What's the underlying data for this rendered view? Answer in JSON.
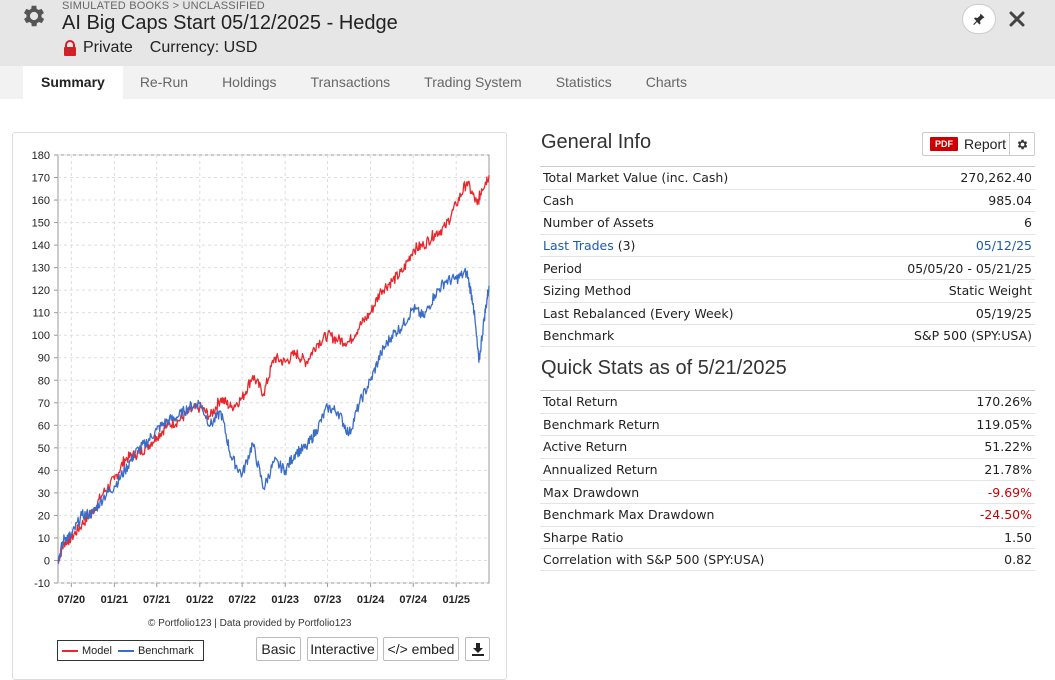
{
  "header": {
    "breadcrumb": "SIMULATED BOOKS > UNCLASSIFIED",
    "title": "AI Big Caps Start 05/12/2025 - Hedge",
    "visibility": "Private",
    "currency": "Currency: USD"
  },
  "tabs": [
    {
      "label": "Summary",
      "active": true
    },
    {
      "label": "Re-Run"
    },
    {
      "label": "Holdings"
    },
    {
      "label": "Transactions"
    },
    {
      "label": "Trading System"
    },
    {
      "label": "Statistics"
    },
    {
      "label": "Charts"
    }
  ],
  "general_info": {
    "title": "General Info",
    "report_badge": "PDF",
    "report_label": "Report",
    "rows": [
      {
        "label": "Total Market Value (inc. Cash)",
        "value": "270,262.40"
      },
      {
        "label": "Cash",
        "value": "985.04"
      },
      {
        "label": "Number of Assets",
        "value": "6"
      },
      {
        "label": "Last Trades",
        "label_suffix": " (3)",
        "value": "05/12/25",
        "link": true
      },
      {
        "label": "Period",
        "value": "05/05/20 - 05/21/25"
      },
      {
        "label": "Sizing Method",
        "value": "Static Weight"
      },
      {
        "label": "Last Rebalanced (Every Week)",
        "value": "05/19/25"
      },
      {
        "label": "Benchmark",
        "value": "S&P 500 (SPY:USA)"
      }
    ]
  },
  "quick_stats": {
    "title": "Quick Stats as of 5/21/2025",
    "rows": [
      {
        "label": "Total Return",
        "value": "170.26%"
      },
      {
        "label": "Benchmark Return",
        "value": "119.05%"
      },
      {
        "label": "Active Return",
        "value": "51.22%"
      },
      {
        "label": "Annualized Return",
        "value": "21.78%"
      },
      {
        "label": "Max Drawdown",
        "value": "-9.69%",
        "negative": true
      },
      {
        "label": "Benchmark Max Drawdown",
        "value": "-24.50%",
        "negative": true
      },
      {
        "label": "Sharpe Ratio",
        "value": "1.50"
      },
      {
        "label": "Correlation with S&P 500 (SPY:USA)",
        "value": "0.82"
      }
    ]
  },
  "chart_controls": {
    "credit": "© Portfolio123 | Data provided by Portfolio123",
    "basic": "Basic",
    "interactive": "Interactive",
    "embed": "</> embed"
  },
  "colors": {
    "model": "#e8262b",
    "benchmark": "#3a6cc8",
    "negative": "#cc0000",
    "link": "#1e5aa8"
  },
  "icons": {
    "settings": "gear-icon",
    "visibility": "lock-icon",
    "pin": "pin-icon",
    "close": "close-icon",
    "download": "download-icon"
  },
  "chart_data": {
    "type": "line",
    "ylim": [
      -10,
      180
    ],
    "yticks": [
      -10,
      0,
      10,
      20,
      30,
      40,
      50,
      60,
      70,
      80,
      90,
      100,
      110,
      120,
      130,
      140,
      150,
      160,
      170,
      180
    ],
    "xlim": [
      "2020-05-05",
      "2025-05-21"
    ],
    "xticks": [
      {
        "label": "07/20",
        "date": "2020-07-01"
      },
      {
        "label": "01/21",
        "date": "2021-01-01"
      },
      {
        "label": "07/21",
        "date": "2021-07-01"
      },
      {
        "label": "01/22",
        "date": "2022-01-01"
      },
      {
        "label": "07/22",
        "date": "2022-07-01"
      },
      {
        "label": "01/23",
        "date": "2023-01-01"
      },
      {
        "label": "07/23",
        "date": "2023-07-01"
      },
      {
        "label": "01/24",
        "date": "2024-01-01"
      },
      {
        "label": "07/24",
        "date": "2024-07-01"
      },
      {
        "label": "01/25",
        "date": "2025-01-01"
      }
    ],
    "grid": true,
    "legend_position": "bottom-left",
    "series": [
      {
        "name": "Model",
        "points": [
          [
            "2020-05-05",
            0
          ],
          [
            "2020-06-01",
            8
          ],
          [
            "2020-07-01",
            10
          ],
          [
            "2020-08-15",
            16
          ],
          [
            "2020-10-01",
            22
          ],
          [
            "2020-11-15",
            30
          ],
          [
            "2021-01-01",
            36
          ],
          [
            "2021-02-15",
            45
          ],
          [
            "2021-04-01",
            47
          ],
          [
            "2021-05-15",
            50
          ],
          [
            "2021-07-01",
            55
          ],
          [
            "2021-08-15",
            60
          ],
          [
            "2021-10-01",
            62
          ],
          [
            "2021-11-15",
            66
          ],
          [
            "2022-01-01",
            68
          ],
          [
            "2022-02-15",
            64
          ],
          [
            "2022-04-01",
            72
          ],
          [
            "2022-05-15",
            68
          ],
          [
            "2022-07-01",
            72
          ],
          [
            "2022-08-15",
            82
          ],
          [
            "2022-10-01",
            74
          ],
          [
            "2022-11-15",
            90
          ],
          [
            "2023-01-01",
            88
          ],
          [
            "2023-02-15",
            92
          ],
          [
            "2023-04-01",
            88
          ],
          [
            "2023-05-15",
            96
          ],
          [
            "2023-07-01",
            100
          ],
          [
            "2023-08-15",
            98
          ],
          [
            "2023-10-01",
            97
          ],
          [
            "2023-11-15",
            104
          ],
          [
            "2024-01-01",
            110
          ],
          [
            "2024-02-15",
            120
          ],
          [
            "2024-04-01",
            124
          ],
          [
            "2024-05-15",
            128
          ],
          [
            "2024-07-01",
            138
          ],
          [
            "2024-08-15",
            140
          ],
          [
            "2024-10-01",
            145
          ],
          [
            "2024-11-15",
            148
          ],
          [
            "2025-01-01",
            158
          ],
          [
            "2025-02-15",
            168
          ],
          [
            "2025-04-01",
            158
          ],
          [
            "2025-04-20",
            165
          ],
          [
            "2025-05-21",
            171
          ]
        ]
      },
      {
        "name": "Benchmark",
        "points": [
          [
            "2020-05-05",
            0
          ],
          [
            "2020-06-01",
            10
          ],
          [
            "2020-07-01",
            11
          ],
          [
            "2020-08-15",
            20
          ],
          [
            "2020-10-01",
            21
          ],
          [
            "2020-11-15",
            28
          ],
          [
            "2021-01-01",
            33
          ],
          [
            "2021-02-15",
            40
          ],
          [
            "2021-04-01",
            48
          ],
          [
            "2021-05-15",
            52
          ],
          [
            "2021-07-01",
            58
          ],
          [
            "2021-08-15",
            62
          ],
          [
            "2021-10-01",
            64
          ],
          [
            "2021-11-15",
            68
          ],
          [
            "2022-01-01",
            70
          ],
          [
            "2022-02-15",
            60
          ],
          [
            "2022-04-01",
            66
          ],
          [
            "2022-05-15",
            46
          ],
          [
            "2022-07-01",
            38
          ],
          [
            "2022-08-15",
            52
          ],
          [
            "2022-10-01",
            32
          ],
          [
            "2022-11-15",
            44
          ],
          [
            "2023-01-01",
            40
          ],
          [
            "2023-02-15",
            48
          ],
          [
            "2023-04-01",
            50
          ],
          [
            "2023-05-15",
            58
          ],
          [
            "2023-07-01",
            68
          ],
          [
            "2023-08-15",
            66
          ],
          [
            "2023-10-01",
            56
          ],
          [
            "2023-11-15",
            70
          ],
          [
            "2024-01-01",
            80
          ],
          [
            "2024-02-15",
            92
          ],
          [
            "2024-04-01",
            100
          ],
          [
            "2024-05-15",
            104
          ],
          [
            "2024-07-01",
            112
          ],
          [
            "2024-08-15",
            108
          ],
          [
            "2024-10-01",
            118
          ],
          [
            "2024-11-15",
            124
          ],
          [
            "2025-01-01",
            125
          ],
          [
            "2025-02-15",
            128
          ],
          [
            "2025-03-15",
            114
          ],
          [
            "2025-04-08",
            88
          ],
          [
            "2025-05-01",
            108
          ],
          [
            "2025-05-21",
            122
          ]
        ]
      }
    ]
  }
}
